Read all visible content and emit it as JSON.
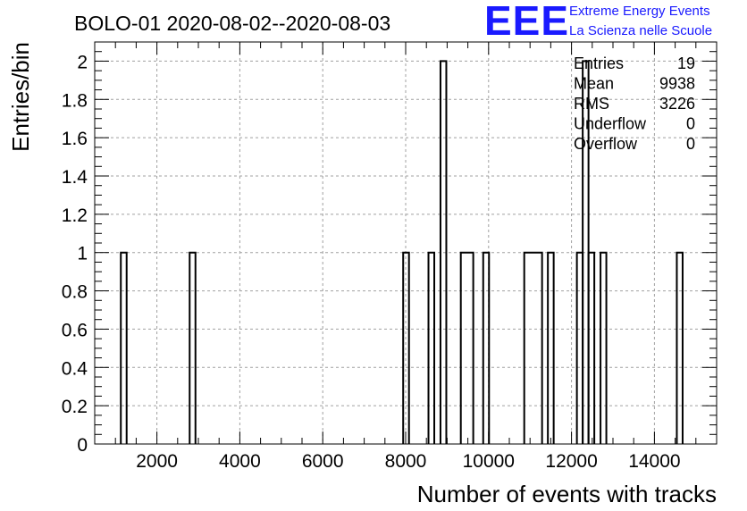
{
  "chart_data": {
    "type": "histogram",
    "title": "BOLO-01 2020-08-02--2020-08-03",
    "xlabel": "Number of events with tracks",
    "ylabel": "Entries/bin",
    "xlim": [
      500,
      15500
    ],
    "ylim": [
      0,
      2.1
    ],
    "xticks": [
      2000,
      4000,
      6000,
      8000,
      10000,
      12000,
      14000
    ],
    "yticks": [
      0,
      0.2,
      0.4,
      0.6,
      0.8,
      1,
      1.2,
      1.4,
      1.6,
      1.8,
      2
    ],
    "ytick_labels": [
      "0",
      "0.2",
      "0.4",
      "0.6",
      "0.8",
      "1",
      "1.2",
      "1.4",
      "1.6",
      "1.8",
      "2"
    ],
    "grid": true,
    "bins": [
      {
        "x0": 1130,
        "x1": 1270,
        "value": 1
      },
      {
        "x0": 2790,
        "x1": 2930,
        "value": 1
      },
      {
        "x0": 7940,
        "x1": 8080,
        "value": 1
      },
      {
        "x0": 8550,
        "x1": 8690,
        "value": 1
      },
      {
        "x0": 8840,
        "x1": 8980,
        "value": 2
      },
      {
        "x0": 9330,
        "x1": 9630,
        "value": 1
      },
      {
        "x0": 9870,
        "x1": 10010,
        "value": 1
      },
      {
        "x0": 10860,
        "x1": 11290,
        "value": 1
      },
      {
        "x0": 11430,
        "x1": 11570,
        "value": 1
      },
      {
        "x0": 12130,
        "x1": 12270,
        "value": 1
      },
      {
        "x0": 12270,
        "x1": 12410,
        "value": 2
      },
      {
        "x0": 12410,
        "x1": 12550,
        "value": 1
      },
      {
        "x0": 12700,
        "x1": 12840,
        "value": 1
      },
      {
        "x0": 14540,
        "x1": 14680,
        "value": 1
      }
    ],
    "stats": [
      {
        "label": "Entries",
        "value": "19"
      },
      {
        "label": "Mean",
        "value": "9938"
      },
      {
        "label": "RMS",
        "value": "3226"
      },
      {
        "label": "Underflow",
        "value": "0"
      },
      {
        "label": "Overflow",
        "value": "0"
      }
    ]
  },
  "logo": {
    "mark": "EEE",
    "line1": "Extreme Energy Events",
    "line2": "La Scienza nelle Scuole",
    "color": "#1a1aff"
  }
}
